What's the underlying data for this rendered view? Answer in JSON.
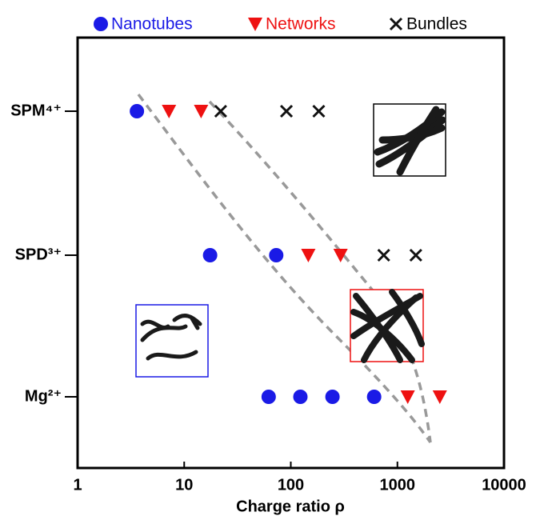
{
  "chart_data": {
    "type": "scatter",
    "x_label": "Charge ratio ρ",
    "categories": [
      "SPM⁴⁺",
      "SPD³⁺",
      "Mg²⁺"
    ],
    "xlim": [
      1,
      10000
    ],
    "xticks": [
      1,
      10,
      100,
      1000,
      10000
    ],
    "log_x": true,
    "series": [
      {
        "name": "Nanotubes",
        "color": "#1a1ae6",
        "marker": "circle",
        "x": [
          3.6,
          17.5,
          73,
          62,
          123,
          246,
          605
        ],
        "y": [
          "SPM⁴⁺",
          "SPD³⁺",
          "SPD³⁺",
          "Mg²⁺",
          "Mg²⁺",
          "Mg²⁺",
          "Mg²⁺"
        ]
      },
      {
        "name": "Networks",
        "color": "#ee1111",
        "marker": "triangle-down",
        "x": [
          7.2,
          14.4,
          146,
          293,
          1250,
          2500
        ],
        "y": [
          "SPM⁴⁺",
          "SPM⁴⁺",
          "SPD³⁺",
          "SPD³⁺",
          "Mg²⁺",
          "Mg²⁺"
        ]
      },
      {
        "name": "Bundles",
        "color": "#111111",
        "marker": "x",
        "x": [
          22,
          91,
          183,
          745,
          1490
        ],
        "y": [
          "SPM⁴⁺",
          "SPM⁴⁺",
          "SPM⁴⁺",
          "SPD³⁺",
          "SPD³⁺"
        ]
      }
    ]
  }
}
